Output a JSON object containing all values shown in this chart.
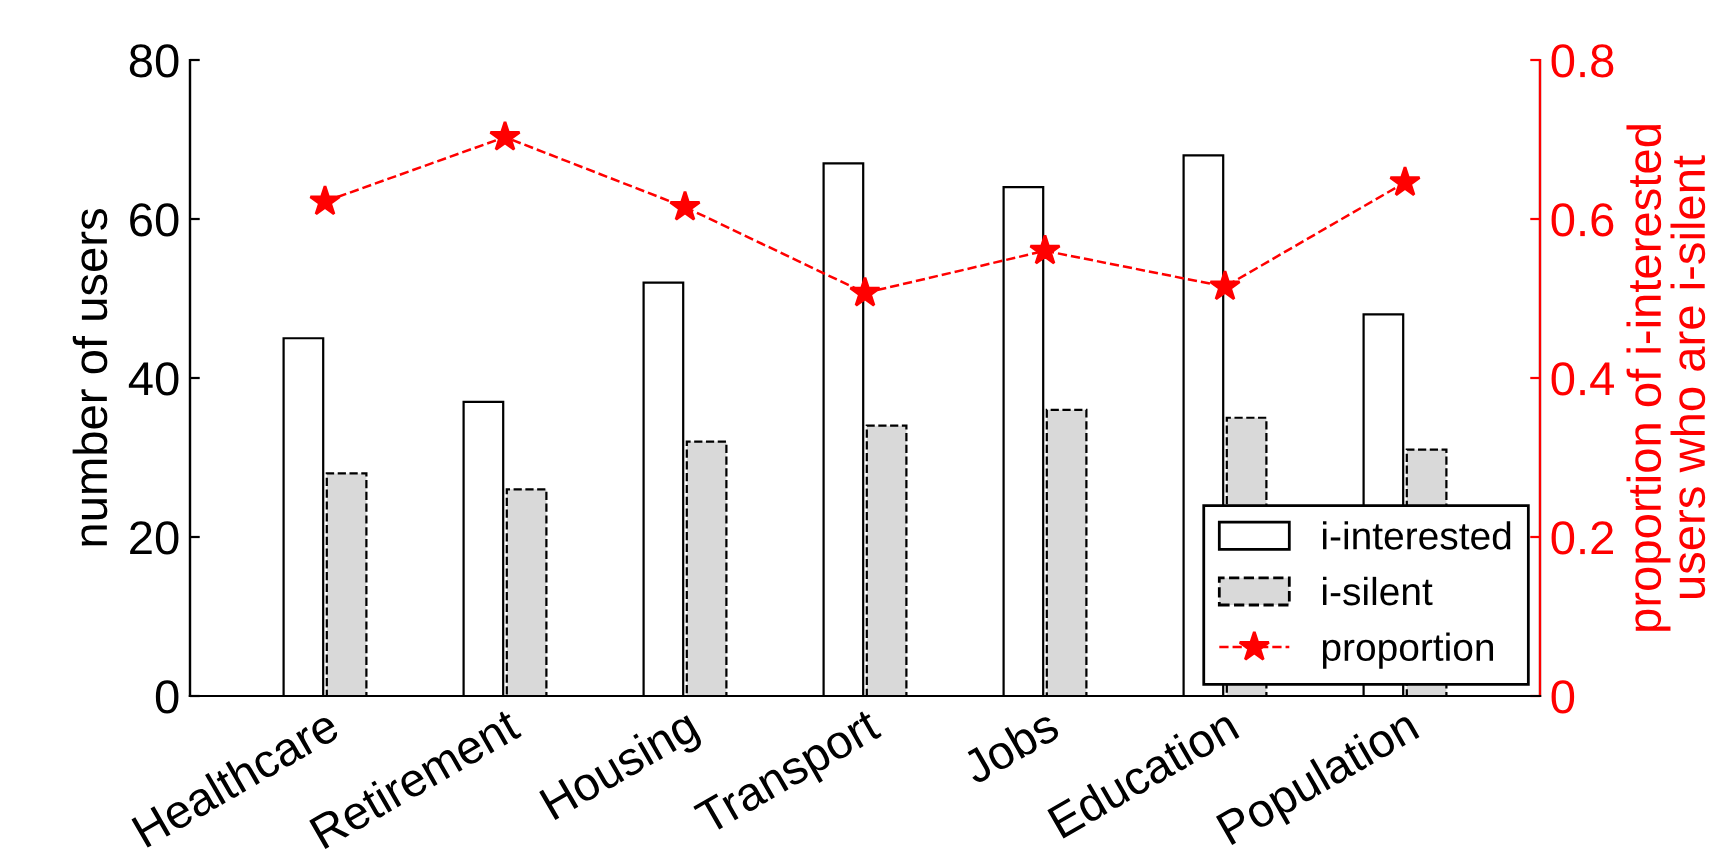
{
  "chart_data": {
    "type": "bar",
    "categories": [
      "Healthcare",
      "Retirement",
      "Housing",
      "Transport",
      "Jobs",
      "Education",
      "Population"
    ],
    "series": [
      {
        "name": "i-interested",
        "color": "#ffffff",
        "values": [
          45,
          37,
          52,
          67,
          64,
          68,
          48
        ]
      },
      {
        "name": "i-silent",
        "color": "#d9d9d9",
        "line_style": "dashed",
        "values": [
          28,
          26,
          32,
          34,
          36,
          35,
          31
        ]
      },
      {
        "name": "proportion",
        "type": "line",
        "axis": "y2",
        "color": "#ff0000",
        "marker": "star",
        "line_style": "dashed",
        "values": [
          0.622,
          0.703,
          0.615,
          0.507,
          0.56,
          0.515,
          0.646
        ]
      }
    ],
    "ylabel": "number of users",
    "y2label": "proportion of i-interested\nusers who are i-silent",
    "ylim": [
      0,
      80
    ],
    "yticks": [
      0,
      20,
      40,
      60,
      80
    ],
    "y2lim": [
      0,
      0.8
    ],
    "y2ticks": [
      {
        "value": 0,
        "label": "0"
      },
      0.2,
      0.4,
      0.6,
      0.8
    ],
    "legend": "bottom right",
    "grid": false
  }
}
